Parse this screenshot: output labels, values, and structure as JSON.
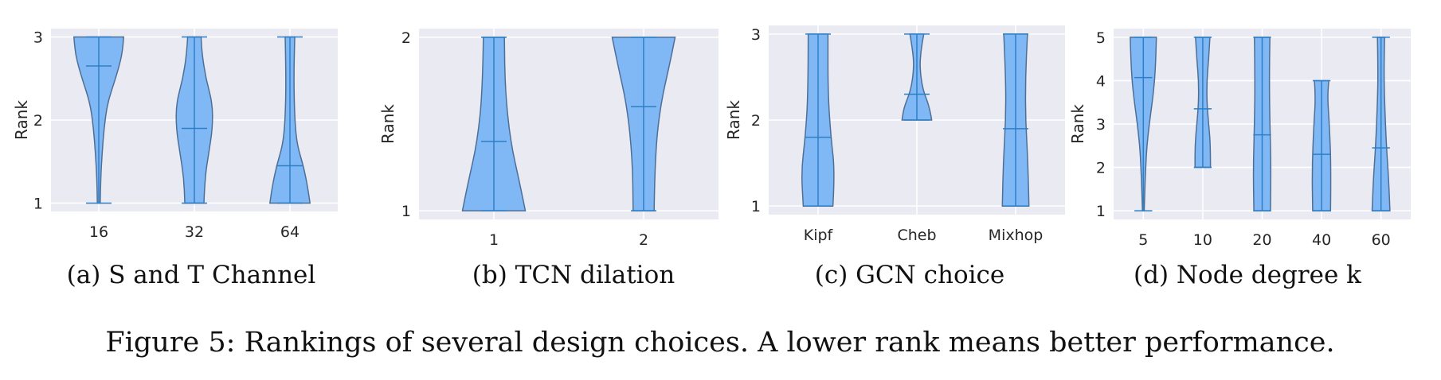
{
  "figure_caption": "Figure 5: Rankings of several design choices. A lower rank means better performance.",
  "style": {
    "panel_bg": "#eaeaf2",
    "grid": "#ffffff",
    "violin_fill": "#80b8f6",
    "violin_edge": "#4d6f96",
    "mean_line": "#2d7fc7"
  },
  "chart_data": [
    {
      "type": "violin",
      "caption": "(a) S and T Channel",
      "xlabel": "",
      "ylabel": "Rank",
      "categories": [
        "16",
        "32",
        "64"
      ],
      "yticks": [
        1,
        2,
        3
      ],
      "ylim": [
        0.9,
        3.1
      ],
      "grid": true,
      "violins": [
        {
          "min": 1,
          "max": 3,
          "mean": 2.65,
          "profile": [
            [
              1.0,
              0.03
            ],
            [
              1.3,
              0.04
            ],
            [
              1.6,
              0.07
            ],
            [
              1.9,
              0.11
            ],
            [
              2.2,
              0.18
            ],
            [
              2.5,
              0.35
            ],
            [
              2.7,
              0.45
            ],
            [
              2.85,
              0.5
            ],
            [
              3.0,
              0.52
            ]
          ]
        },
        {
          "min": 1,
          "max": 3,
          "mean": 1.9,
          "profile": [
            [
              1.0,
              0.2
            ],
            [
              1.3,
              0.22
            ],
            [
              1.6,
              0.3
            ],
            [
              1.9,
              0.38
            ],
            [
              2.2,
              0.38
            ],
            [
              2.5,
              0.24
            ],
            [
              2.8,
              0.16
            ],
            [
              3.0,
              0.14
            ]
          ]
        },
        {
          "min": 1,
          "max": 3,
          "mean": 1.45,
          "profile": [
            [
              1.0,
              0.42
            ],
            [
              1.2,
              0.37
            ],
            [
              1.45,
              0.28
            ],
            [
              1.7,
              0.15
            ],
            [
              2.0,
              0.1
            ],
            [
              2.5,
              0.08
            ],
            [
              3.0,
              0.1
            ]
          ]
        }
      ]
    },
    {
      "type": "violin",
      "caption": "(b) TCN dilation",
      "xlabel": "",
      "ylabel": "Rank",
      "categories": [
        "1",
        "2"
      ],
      "yticks": [
        1,
        2
      ],
      "ylim": [
        0.95,
        2.05
      ],
      "grid": true,
      "violins": [
        {
          "min": 1,
          "max": 2,
          "mean": 1.4,
          "profile": [
            [
              1.0,
              0.42
            ],
            [
              1.15,
              0.35
            ],
            [
              1.4,
              0.22
            ],
            [
              1.7,
              0.15
            ],
            [
              2.0,
              0.14
            ]
          ]
        },
        {
          "min": 1,
          "max": 2,
          "mean": 1.6,
          "profile": [
            [
              1.0,
              0.14
            ],
            [
              1.3,
              0.15
            ],
            [
              1.6,
              0.22
            ],
            [
              1.85,
              0.35
            ],
            [
              2.0,
              0.42
            ]
          ]
        }
      ]
    },
    {
      "type": "violin",
      "caption": "(c) GCN choice",
      "xlabel": "",
      "ylabel": "Rank",
      "categories": [
        "Kipf",
        "Cheb",
        "Mixhop"
      ],
      "yticks": [
        1,
        2,
        3
      ],
      "ylim": [
        0.9,
        3.1
      ],
      "grid": true,
      "violins": [
        {
          "min": 1,
          "max": 3,
          "mean": 1.8,
          "profile": [
            [
              1.0,
              0.3
            ],
            [
              1.4,
              0.34
            ],
            [
              1.8,
              0.26
            ],
            [
              2.3,
              0.2
            ],
            [
              3.0,
              0.2
            ]
          ]
        },
        {
          "min": 2,
          "max": 3,
          "mean": 2.3,
          "profile": [
            [
              2.0,
              0.3
            ],
            [
              2.15,
              0.26
            ],
            [
              2.35,
              0.12
            ],
            [
              2.6,
              0.06
            ],
            [
              2.8,
              0.08
            ],
            [
              3.0,
              0.14
            ]
          ]
        },
        {
          "min": 1,
          "max": 3,
          "mean": 1.9,
          "profile": [
            [
              1.0,
              0.27
            ],
            [
              1.5,
              0.25
            ],
            [
              2.0,
              0.2
            ],
            [
              2.5,
              0.2
            ],
            [
              3.0,
              0.24
            ]
          ]
        }
      ]
    },
    {
      "type": "violin",
      "caption": "(d) Node degree k",
      "xlabel": "",
      "ylabel": "Rank",
      "categories": [
        "5",
        "10",
        "20",
        "40",
        "60"
      ],
      "yticks": [
        1,
        2,
        3,
        4,
        5
      ],
      "ylim": [
        0.8,
        5.2
      ],
      "grid": true,
      "violins": [
        {
          "min": 1,
          "max": 5,
          "mean": 4.07,
          "profile": [
            [
              1.0,
              0.03
            ],
            [
              1.5,
              0.05
            ],
            [
              2.0,
              0.08
            ],
            [
              2.5,
              0.12
            ],
            [
              3.0,
              0.2
            ],
            [
              3.5,
              0.3
            ],
            [
              4.0,
              0.38
            ],
            [
              4.5,
              0.42
            ],
            [
              5.0,
              0.44
            ]
          ]
        },
        {
          "min": 2,
          "max": 5,
          "mean": 3.35,
          "profile": [
            [
              2.0,
              0.26
            ],
            [
              2.5,
              0.26
            ],
            [
              3.0,
              0.2
            ],
            [
              3.5,
              0.14
            ],
            [
              4.0,
              0.14
            ],
            [
              4.5,
              0.2
            ],
            [
              5.0,
              0.24
            ]
          ]
        },
        {
          "min": 1,
          "max": 5,
          "mean": 2.75,
          "profile": [
            [
              1.0,
              0.28
            ],
            [
              2.0,
              0.3
            ],
            [
              3.0,
              0.26
            ],
            [
              4.0,
              0.24
            ],
            [
              5.0,
              0.26
            ]
          ]
        },
        {
          "min": 1,
          "max": 4,
          "mean": 2.3,
          "profile": [
            [
              1.0,
              0.3
            ],
            [
              2.0,
              0.32
            ],
            [
              3.0,
              0.26
            ],
            [
              3.6,
              0.2
            ],
            [
              4.0,
              0.24
            ]
          ]
        },
        {
          "min": 1,
          "max": 5,
          "mean": 2.45,
          "profile": [
            [
              1.0,
              0.3
            ],
            [
              1.7,
              0.26
            ],
            [
              2.5,
              0.18
            ],
            [
              3.5,
              0.12
            ],
            [
              4.2,
              0.1
            ],
            [
              5.0,
              0.12
            ]
          ]
        }
      ]
    }
  ]
}
